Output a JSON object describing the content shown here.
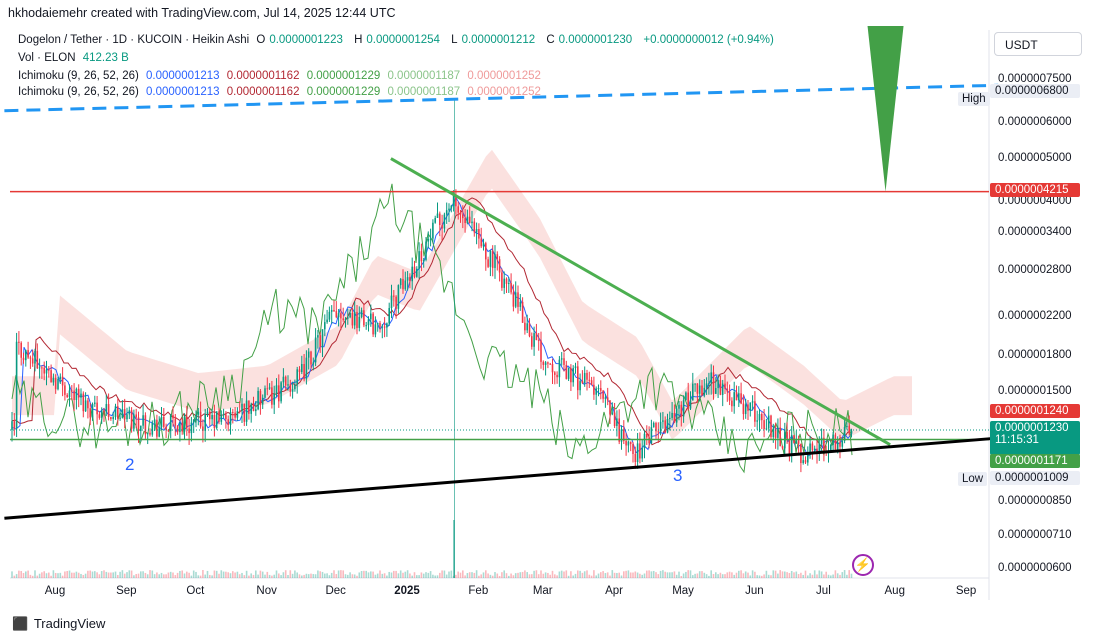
{
  "caption": "hkhodaiemehr created with TradingView.com, Jul 14, 2025 12:44 UTC",
  "legend": {
    "symbol": "Dogelon / Tether · 1D · KUCOIN · Heikin Ashi",
    "open_label": "O",
    "open": "0.0000001223",
    "high_label": "H",
    "high": "0.0000001254",
    "low_label": "L",
    "low": "0.0000001212",
    "close_label": "C",
    "close": "0.0000001230",
    "change": "+0.0000000012 (+0.94%)",
    "vol_label": "Vol · ELON",
    "vol": "412.23 B",
    "ichi_label": "Ichimoku (9, 26, 52, 26)",
    "ichi_values": [
      "0.0000001213",
      "0.0000001162",
      "0.0000001229",
      "0.0000001187",
      "0.0000001252"
    ]
  },
  "currency": "USDT",
  "badges": {
    "high_label": "High",
    "high_value": "0.0000006800",
    "low_label": "Low",
    "low_value": "0.0000001009",
    "resistance": "0.0000004215",
    "ichi_price": "0.0000001240",
    "last_price": "0.0000001230",
    "countdown": "11:15:31",
    "support": "0.0000001171"
  },
  "wave_labels": [
    "2",
    "3"
  ],
  "footer": "TradingView",
  "colors": {
    "up": "#089981",
    "down": "#f23645",
    "support": "#43a047",
    "resistance": "#e53935",
    "cloud": "#f8c8c4"
  },
  "chart_data": {
    "type": "candlestick",
    "scale": "log",
    "price_axis": {
      "ticks": [
        7.5e-07,
        6.8e-07,
        6e-07,
        5e-07,
        4e-07,
        3.4e-07,
        2.8e-07,
        2.2e-07,
        1.8e-07,
        1.5e-07,
        1.24e-07,
        1.23e-07,
        1.171e-07,
        8.5e-08,
        7.1e-08,
        6e-08
      ],
      "tick_labels": [
        "0.0000007500",
        "0.0000006800",
        "0.0000006000",
        "0.0000005000",
        "0.0000004000",
        "0.0000003400",
        "0.0000002800",
        "0.0000002200",
        "0.0000001800",
        "0.0000001500",
        "0.0000001240",
        "0.0000001230",
        "0.0000001171",
        "0.0000000850",
        "0.0000000710",
        "0.0000000600"
      ]
    },
    "time_axis": {
      "labels": [
        "Aug",
        "Sep",
        "Oct",
        "Nov",
        "Dec",
        "2025",
        "Feb",
        "Mar",
        "Apr",
        "May",
        "Jun",
        "Jul",
        "Aug",
        "Sep"
      ],
      "dates": [
        "2024-08-01",
        "2024-09-01",
        "2024-10-01",
        "2024-11-01",
        "2024-12-01",
        "2025-01-01",
        "2025-02-01",
        "2025-03-01",
        "2025-04-01",
        "2025-05-01",
        "2025-06-01",
        "2025-07-01",
        "2025-08-01",
        "2025-09-01"
      ]
    },
    "price_series": {
      "dates": [
        "2024-07-15",
        "2024-08-15",
        "2024-09-15",
        "2024-10-15",
        "2024-11-15",
        "2024-12-01",
        "2024-12-20",
        "2025-01-20",
        "2025-02-10",
        "2025-03-01",
        "2025-03-25",
        "2025-04-09",
        "2025-05-12",
        "2025-06-05",
        "2025-06-22",
        "2025-07-14"
      ],
      "close": [
        1.9e-07,
        1.4e-07,
        1.25e-07,
        1.3e-07,
        1.6e-07,
        2.3e-07,
        2.1e-07,
        4e-07,
        2.8e-07,
        1.8e-07,
        1.5e-07,
        1.08e-07,
        1.6e-07,
        1.3e-07,
        1.08e-07,
        1.23e-07
      ]
    },
    "lines": [
      {
        "name": "resistance",
        "price": 4.215e-07,
        "color": "#e53935"
      },
      {
        "name": "support",
        "price": 1.171e-07,
        "color": "#43a047"
      }
    ],
    "trendlines": [
      {
        "name": "descending",
        "from": {
          "date": "2024-12-25",
          "price": 5e-07
        },
        "to": {
          "date": "2025-07-30",
          "price": 1.14e-07
        },
        "color": "#4caf50"
      },
      {
        "name": "ascending-support",
        "from": {
          "date": "2024-07-10",
          "price": 7.8e-08
        },
        "to": {
          "date": "2025-09-15",
          "price": 1.18e-07
        },
        "color": "#000000"
      },
      {
        "name": "upper-dashed",
        "from": {
          "date": "2024-07-10",
          "price": 6.4e-07
        },
        "to": {
          "date": "2025-09-15",
          "price": 7.3e-07
        },
        "color": "#2196f3"
      }
    ],
    "projection_arrow": {
      "date": "2025-07-28",
      "from_price": 8.5e-07,
      "to_price": 4.215e-07,
      "color": "#43a047"
    }
  }
}
